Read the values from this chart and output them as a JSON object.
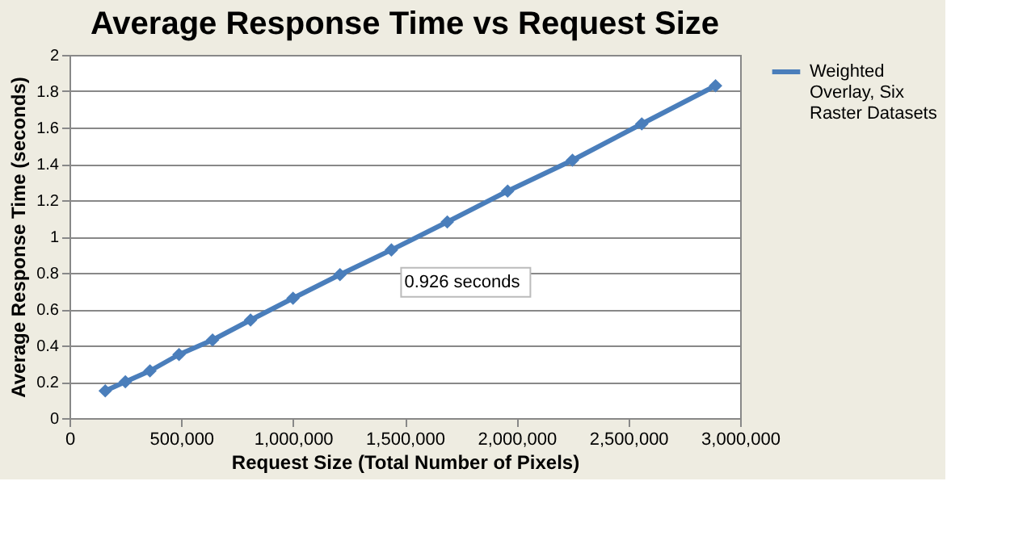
{
  "chart_data": {
    "type": "line",
    "title": "Average Response Time vs Request Size",
    "xlabel": "Request Size (Total Number of Pixels)",
    "ylabel": "Average Response Time (seconds)",
    "x": [
      160000,
      250000,
      360000,
      490000,
      640000,
      810000,
      1000000,
      1210000,
      1440000,
      1690000,
      1960000,
      2250000,
      2560000,
      2890000
    ],
    "series": [
      {
        "name": "Weighted Overlay, Six Raster Datasets",
        "color": "#4a7ebb",
        "values": [
          0.15,
          0.2,
          0.26,
          0.35,
          0.43,
          0.54,
          0.66,
          0.79,
          0.926,
          1.08,
          1.25,
          1.42,
          1.62,
          1.83
        ],
        "value_labels": [
          null,
          null,
          null,
          null,
          null,
          null,
          null,
          null,
          "0.926 seconds",
          null,
          null,
          null,
          null,
          null
        ]
      }
    ],
    "xlim": [
      0,
      3000000
    ],
    "xticks": [
      0,
      {
        "value": 500000,
        "label": "500,000"
      },
      {
        "value": 1000000,
        "label": "1,000,000"
      },
      {
        "value": 1500000,
        "label": "1,500,000"
      },
      {
        "value": 2000000,
        "label": "2,000,000"
      },
      {
        "value": 2500000,
        "label": "2,500,000"
      },
      {
        "value": 3000000,
        "label": "3,000,000"
      }
    ],
    "ylim": [
      0,
      2
    ],
    "yticks": [
      0,
      0.2,
      0.4,
      0.6,
      0.8,
      1,
      1.2,
      1.4,
      1.6,
      1.8,
      2
    ],
    "grid": "y",
    "legend": "right",
    "marker": "diamond",
    "line_style": "solid"
  }
}
